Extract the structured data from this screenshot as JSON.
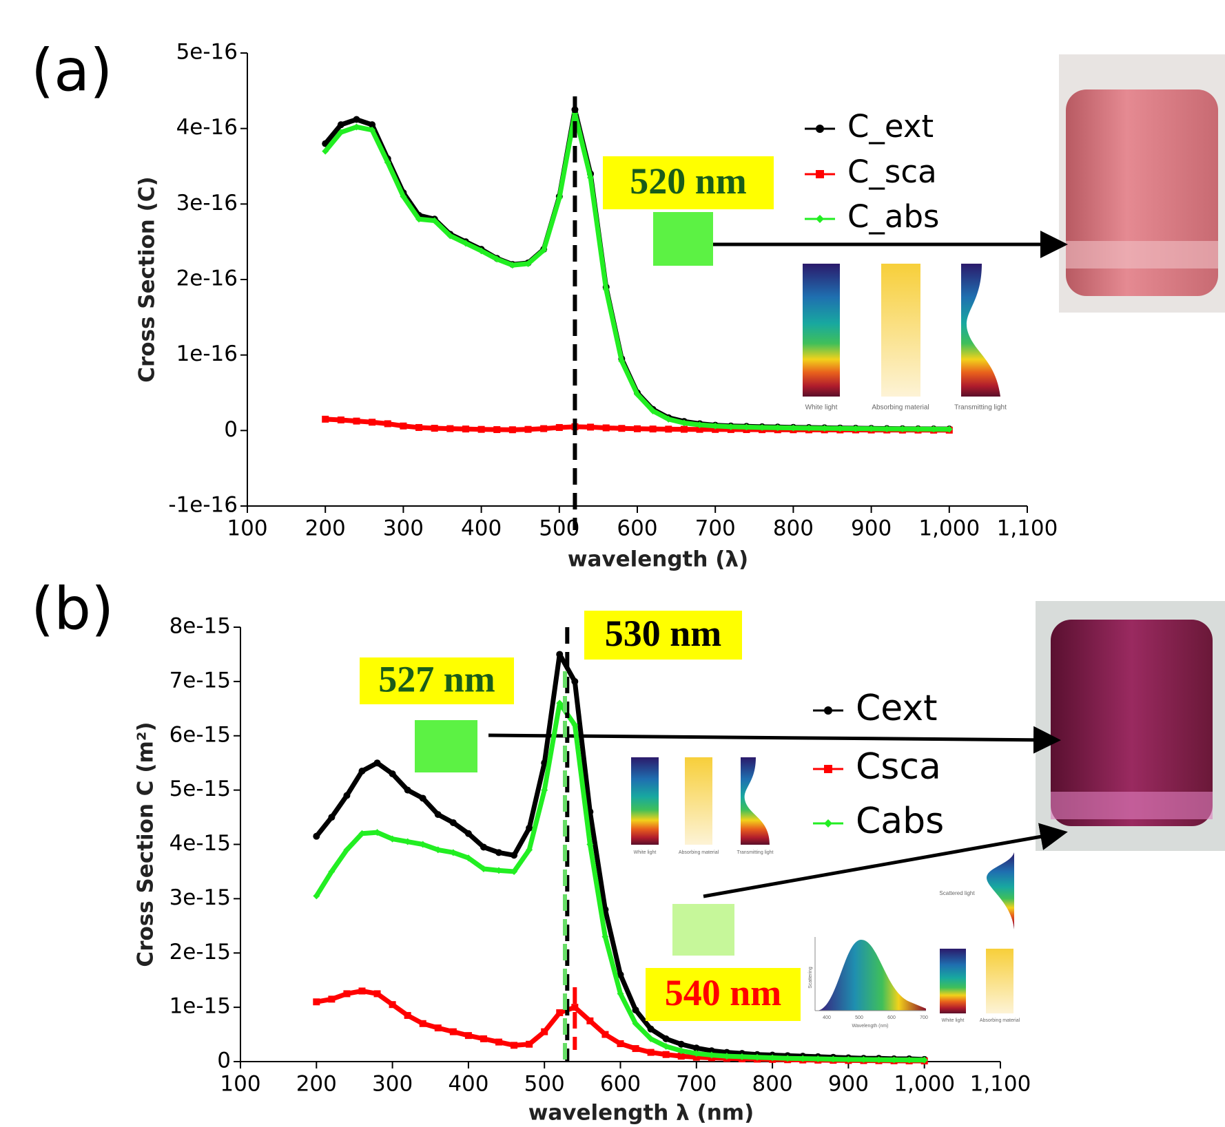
{
  "chart_data": [
    {
      "type": "line",
      "panel_label": "(a)",
      "y_label": "Cross Section (C)",
      "x_label": "wavelength (λ)",
      "xlim": [
        100,
        1100
      ],
      "xticks": [
        100,
        200,
        300,
        400,
        500,
        600,
        700,
        800,
        900,
        {
          "value": 1000,
          "label": "1,000"
        },
        {
          "value": 1100,
          "label": "1,100"
        }
      ],
      "ylim": [
        -1e-16,
        5e-16
      ],
      "yticks": [
        {
          "value": -1e-16,
          "label": "-1e-16"
        },
        0,
        {
          "value": 1e-16,
          "label": "1e-16"
        },
        {
          "value": 2e-16,
          "label": "2e-16"
        },
        {
          "value": 3e-16,
          "label": "3e-16"
        },
        {
          "value": 4e-16,
          "label": "4e-16"
        },
        {
          "value": 5e-16,
          "label": "5e-16"
        }
      ],
      "x": [
        200,
        220,
        240,
        260,
        280,
        300,
        320,
        340,
        360,
        380,
        400,
        420,
        440,
        460,
        480,
        500,
        520,
        540,
        560,
        580,
        600,
        620,
        640,
        660,
        680,
        700,
        720,
        740,
        760,
        780,
        800,
        820,
        840,
        860,
        880,
        900,
        920,
        940,
        960,
        980,
        1000
      ],
      "series": [
        {
          "name": "C_ext",
          "color": "#000000",
          "values": [
            3.8e-16,
            4.05e-16,
            4.12e-16,
            4.05e-16,
            3.6e-16,
            3.15e-16,
            2.85e-16,
            2.8e-16,
            2.6e-16,
            2.5e-16,
            2.4e-16,
            2.28e-16,
            2.2e-16,
            2.22e-16,
            2.4e-16,
            3.1e-16,
            4.25e-16,
            3.4e-16,
            1.9e-16,
            9.5e-17,
            5e-17,
            2.8e-17,
            1.7e-17,
            1.2e-17,
            9e-18,
            7e-18,
            6e-18,
            5.5e-18,
            5e-18,
            4.6e-18,
            4.2e-18,
            3.9e-18,
            3.6e-18,
            3.3e-18,
            3e-18,
            2.8e-18,
            2.6e-18,
            2.4e-18,
            2.2e-18,
            2.1e-18,
            2e-18
          ]
        },
        {
          "name": "C_sca",
          "color": "#ff0000",
          "values": [
            1.5e-17,
            1.4e-17,
            1.25e-17,
            1.1e-17,
            9e-18,
            6e-18,
            4e-18,
            3e-18,
            2.5e-18,
            2e-18,
            1.5e-18,
            1.2e-18,
            1e-18,
            1.5e-18,
            2.5e-18,
            4e-18,
            5e-18,
            4.5e-18,
            3.5e-18,
            2.8e-18,
            2.3e-18,
            2e-18,
            1.8e-18,
            1.6e-18,
            1.5e-18,
            1.4e-18,
            1.3e-18,
            1.2e-18,
            1.1e-18,
            1e-18,
            1e-18,
            9e-19,
            9e-19,
            8e-19,
            8e-19,
            7e-19,
            7e-19,
            6e-19,
            6e-19,
            5e-19,
            5e-19
          ]
        },
        {
          "name": "C_abs",
          "color": "#22ee22",
          "values": [
            3.7e-16,
            3.95e-16,
            4.02e-16,
            3.98e-16,
            3.55e-16,
            3.1e-16,
            2.8e-16,
            2.78e-16,
            2.58e-16,
            2.48e-16,
            2.38e-16,
            2.27e-16,
            2.19e-16,
            2.21e-16,
            2.39e-16,
            3.08e-16,
            4.2e-16,
            3.35e-16,
            1.87e-16,
            9.2e-17,
            4.8e-17,
            2.6e-17,
            1.5e-17,
            1e-17,
            7.5e-18,
            6e-18,
            5e-18,
            4.5e-18,
            4e-18,
            3.7e-18,
            3.4e-18,
            3.1e-18,
            2.9e-18,
            2.7e-18,
            2.5e-18,
            2.3e-18,
            2.1e-18,
            2e-18,
            1.9e-18,
            1.8e-18,
            1.7e-18
          ]
        }
      ],
      "vlines": [
        {
          "x": 520,
          "label": "520 nm",
          "color": "#000000",
          "label_color": "#1a5c1a"
        }
      ],
      "inset_labels": [
        "White light",
        "Absorbing material",
        "Transmitting light"
      ]
    },
    {
      "type": "line",
      "panel_label": "(b)",
      "y_label": "Cross Section C (m²)",
      "x_label": "wavelength λ (nm)",
      "xlim": [
        100,
        1100
      ],
      "xticks": [
        100,
        200,
        300,
        400,
        500,
        600,
        700,
        800,
        900,
        {
          "value": 1000,
          "label": "1,000"
        },
        {
          "value": 1100,
          "label": "1,100"
        }
      ],
      "ylim": [
        0,
        8e-15
      ],
      "yticks": [
        0,
        {
          "value": 1e-15,
          "label": "1e-15"
        },
        {
          "value": 2e-15,
          "label": "2e-15"
        },
        {
          "value": 3e-15,
          "label": "3e-15"
        },
        {
          "value": 4e-15,
          "label": "4e-15"
        },
        {
          "value": 5e-15,
          "label": "5e-15"
        },
        {
          "value": 6e-15,
          "label": "6e-15"
        },
        {
          "value": 7e-15,
          "label": "7e-15"
        },
        {
          "value": 8e-15,
          "label": "8e-15"
        }
      ],
      "x": [
        200,
        220,
        240,
        260,
        280,
        300,
        320,
        340,
        360,
        380,
        400,
        420,
        440,
        460,
        480,
        500,
        520,
        540,
        560,
        580,
        600,
        620,
        640,
        660,
        680,
        700,
        720,
        740,
        760,
        780,
        800,
        820,
        840,
        860,
        880,
        900,
        920,
        940,
        960,
        980,
        1000
      ],
      "series": [
        {
          "name": "Cext",
          "color": "#000000",
          "values": [
            4.15e-15,
            4.5e-15,
            4.9e-15,
            5.35e-15,
            5.5e-15,
            5.3e-15,
            5e-15,
            4.85e-15,
            4.55e-15,
            4.4e-15,
            4.2e-15,
            3.95e-15,
            3.85e-15,
            3.8e-15,
            4.3e-15,
            5.5e-15,
            7.5e-15,
            7e-15,
            4.6e-15,
            2.8e-15,
            1.6e-15,
            9.5e-16,
            6e-16,
            4.2e-16,
            3.2e-16,
            2.5e-16,
            2e-16,
            1.7e-16,
            1.5e-16,
            1.3e-16,
            1.2e-16,
            1.1e-16,
            1e-16,
            9e-17,
            8e-17,
            7e-17,
            6e-17,
            6e-17,
            5e-17,
            5e-17,
            4e-17
          ]
        },
        {
          "name": "Csca",
          "color": "#ff0000",
          "values": [
            1.1e-15,
            1.15e-15,
            1.25e-15,
            1.3e-15,
            1.25e-15,
            1.05e-15,
            8.5e-16,
            7e-16,
            6.2e-16,
            5.5e-16,
            4.8e-16,
            4.2e-16,
            3.6e-16,
            3e-16,
            3.2e-16,
            5.5e-16,
            9e-16,
            1e-15,
            7.5e-16,
            5e-16,
            3.3e-16,
            2.4e-16,
            1.7e-16,
            1.3e-16,
            1e-16,
            8e-17,
            7e-17,
            6e-17,
            5e-17,
            4.5e-17,
            4e-17,
            3.5e-17,
            3e-17,
            2.7e-17,
            2.4e-17,
            2.1e-17,
            1.9e-17,
            1.7e-17,
            1.5e-17,
            1.3e-17,
            1.2e-17
          ]
        },
        {
          "name": "Cabs",
          "color": "#22ee22",
          "values": [
            3.05e-15,
            3.5e-15,
            3.9e-15,
            4.2e-15,
            4.22e-15,
            4.1e-15,
            4.05e-15,
            4e-15,
            3.9e-15,
            3.85e-15,
            3.75e-15,
            3.55e-15,
            3.52e-15,
            3.5e-15,
            3.9e-15,
            5e-15,
            6.6e-15,
            6.2e-15,
            4e-15,
            2.3e-15,
            1.25e-15,
            7e-16,
            4.2e-16,
            2.8e-16,
            2e-16,
            1.5e-16,
            1.2e-16,
            1e-16,
            9e-17,
            8e-17,
            7e-17,
            6e-17,
            5.5e-17,
            5e-17,
            4.5e-17,
            4e-17,
            3.8e-17,
            3.5e-17,
            3.2e-17,
            3e-17,
            2.8e-17
          ]
        }
      ],
      "vlines": [
        {
          "x": 530,
          "label": "530 nm",
          "color": "#000000",
          "label_color": "#000000"
        },
        {
          "x": 527,
          "label": "527 nm",
          "color": "#66dd66",
          "label_color": "#1a5c1a"
        },
        {
          "x": 540,
          "label": "540 nm",
          "color": "#ff0000",
          "label_color": "#ff0000"
        }
      ],
      "inset_labels": [
        "White light",
        "Absorbing material",
        "Transmitting light"
      ],
      "inset2_labels": [
        "Scattered light",
        "Scattering",
        "Wavelength (nm)",
        "White light",
        "Absorbing material"
      ],
      "inset2_xticks": [
        400,
        500,
        600,
        700
      ]
    }
  ]
}
